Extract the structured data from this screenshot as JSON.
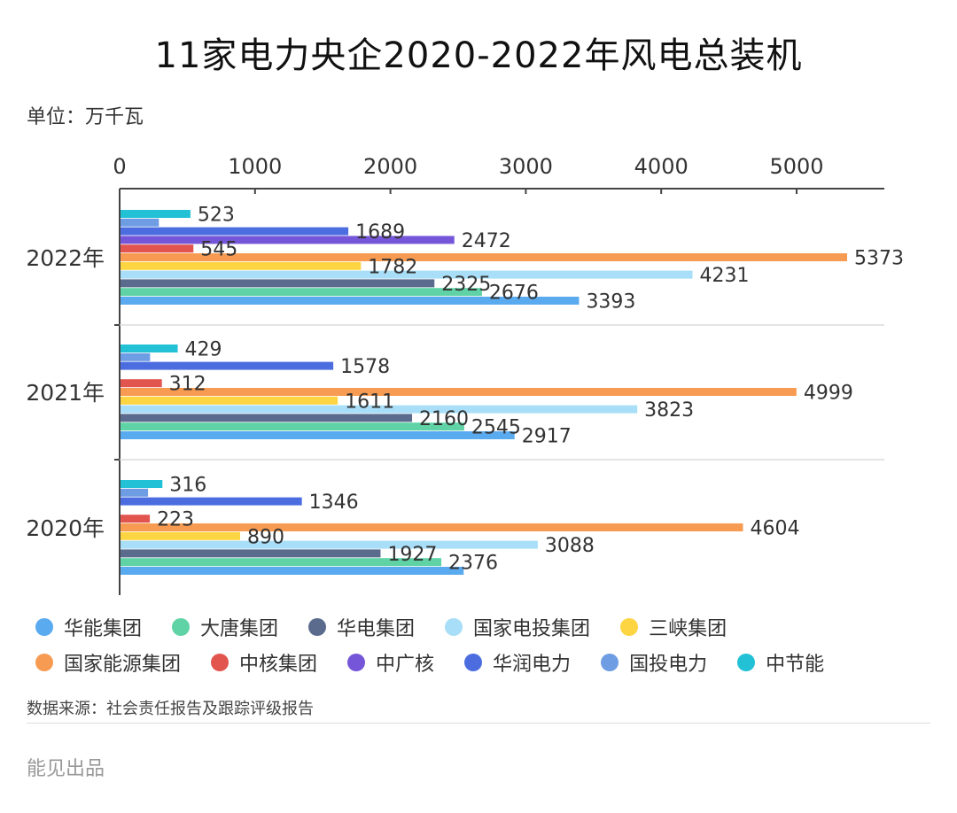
{
  "title": "11家电力央企2020-2022年风电总装机",
  "unit": "单位：万千瓦",
  "source": "数据来源：社会责任报告及跟踪评级报告",
  "brand": "能见出品",
  "chart_data": {
    "type": "bar",
    "orientation": "horizontal",
    "title": "11家电力央企2020-2022年风电总装机",
    "categories": [
      "2022年",
      "2021年",
      "2020年"
    ],
    "xlim": [
      0,
      5600
    ],
    "x_ticks": [
      "0",
      "1000",
      "2000",
      "3000",
      "4000",
      "5000"
    ],
    "x_tick_values": [
      0,
      1000,
      2000,
      3000,
      4000,
      5000
    ],
    "series": [
      {
        "name": "华能集团",
        "color": "#5aaaf0",
        "values": [
          3393,
          2917,
          2541
        ],
        "labels": [
          "3393",
          "2917",
          ""
        ]
      },
      {
        "name": "大唐集团",
        "color": "#5fd3a6",
        "values": [
          2676,
          2545,
          2376
        ],
        "labels": [
          "2676",
          "2545",
          "2376"
        ]
      },
      {
        "name": "华电集团",
        "color": "#5b6b8e",
        "values": [
          2325,
          2160,
          1927
        ],
        "labels": [
          "2325",
          "2160",
          "1927"
        ]
      },
      {
        "name": "国家电投集团",
        "color": "#a8def7",
        "values": [
          4231,
          3823,
          3088
        ],
        "labels": [
          "4231",
          "3823",
          "3088"
        ]
      },
      {
        "name": "三峡集团",
        "color": "#fdd442",
        "values": [
          1782,
          1611,
          890
        ],
        "labels": [
          "1782",
          "1611",
          "890"
        ]
      },
      {
        "name": "国家能源集团",
        "color": "#f79b52",
        "values": [
          5373,
          4999,
          4604
        ],
        "labels": [
          "5373",
          "4999",
          "4604"
        ]
      },
      {
        "name": "中核集团",
        "color": "#e2554f",
        "values": [
          545,
          312,
          223
        ],
        "labels": [
          "545",
          "312",
          "223"
        ]
      },
      {
        "name": "中广核",
        "color": "#7656d8",
        "values": [
          2472,
          null,
          null
        ],
        "labels": [
          "2472",
          "",
          ""
        ]
      },
      {
        "name": "华润电力",
        "color": "#4b6de0",
        "values": [
          1689,
          1578,
          1346
        ],
        "labels": [
          "1689",
          "1578",
          "1346"
        ]
      },
      {
        "name": "国投电力",
        "color": "#6f9de3",
        "values": [
          290,
          225,
          210
        ],
        "labels": [
          "",
          "",
          ""
        ]
      },
      {
        "name": "中节能",
        "color": "#22c1d6",
        "values": [
          523,
          429,
          316
        ],
        "labels": [
          "523",
          "429",
          "316"
        ]
      }
    ],
    "grid": true,
    "legend": "bottom"
  }
}
